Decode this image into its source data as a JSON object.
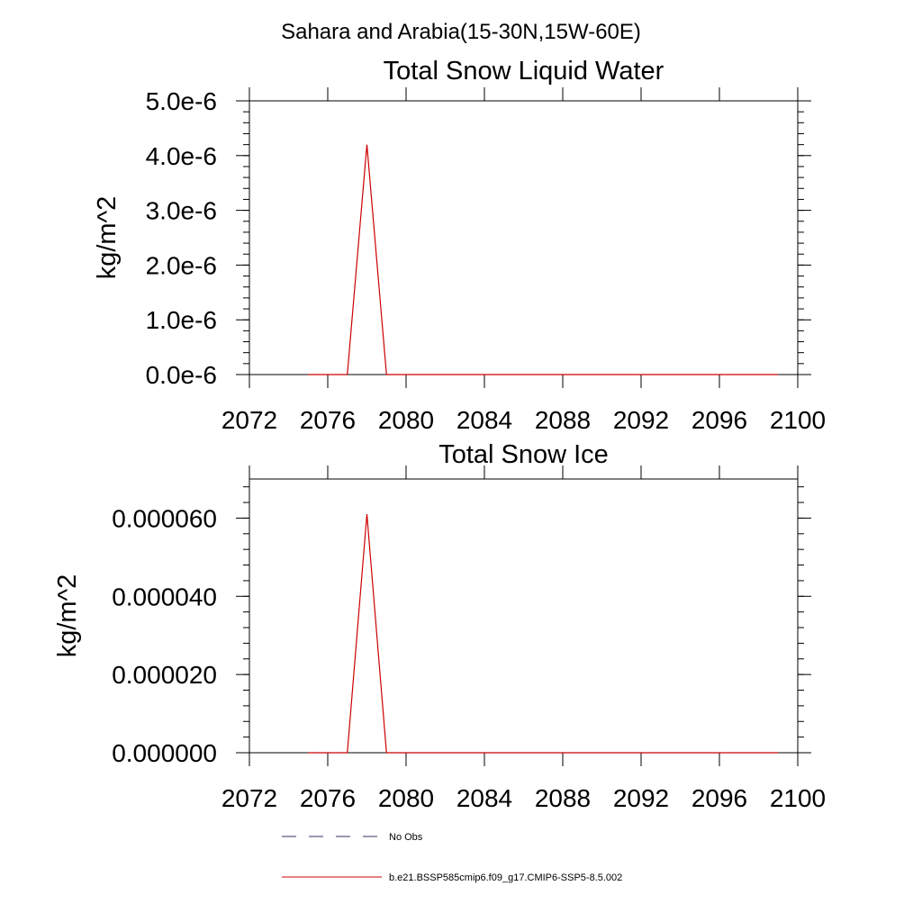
{
  "suptitle": "Sahara and Arabia(15-30N,15W-60E)",
  "chart_data": [
    {
      "type": "line",
      "title": "Total Snow Liquid Water",
      "ylabel": "kg/m^2",
      "xlabel": "",
      "xlim": [
        2072,
        2100
      ],
      "ylim": [
        0,
        5e-06
      ],
      "xticks": [
        2072,
        2076,
        2080,
        2084,
        2088,
        2092,
        2096,
        2100
      ],
      "xtick_labels": [
        "2072",
        "2076",
        "2080",
        "2084",
        "2088",
        "2092",
        "2096",
        "2100"
      ],
      "yticks": [
        0,
        1e-06,
        2e-06,
        3e-06,
        4e-06,
        5e-06
      ],
      "ytick_labels": [
        "0.0e-6",
        "1.0e-6",
        "2.0e-6",
        "3.0e-6",
        "4.0e-6",
        "5.0e-6"
      ],
      "grid": false,
      "x": [
        2075,
        2076,
        2077,
        2078,
        2079,
        2080,
        2081,
        2082,
        2083,
        2084,
        2085,
        2086,
        2087,
        2088,
        2089,
        2090,
        2091,
        2092,
        2093,
        2094,
        2095,
        2096,
        2097,
        2098,
        2099
      ],
      "series": [
        {
          "name": "b.e21.BSSP585cmip6.f09_g17.CMIP6-SSP5-8.5.002",
          "color": "#cc0000",
          "values": [
            0,
            0,
            0,
            4.2e-06,
            0,
            0,
            0,
            0,
            0,
            0,
            0,
            0,
            0,
            0,
            0,
            0,
            0,
            0,
            0,
            0,
            0,
            0,
            0,
            0,
            0
          ]
        }
      ]
    },
    {
      "type": "line",
      "title": "Total Snow Ice",
      "ylabel": "kg/m^2",
      "xlabel": "",
      "xlim": [
        2072,
        2100
      ],
      "ylim": [
        0,
        7e-05
      ],
      "xticks": [
        2072,
        2076,
        2080,
        2084,
        2088,
        2092,
        2096,
        2100
      ],
      "xtick_labels": [
        "2072",
        "2076",
        "2080",
        "2084",
        "2088",
        "2092",
        "2096",
        "2100"
      ],
      "yticks": [
        0,
        2e-05,
        4e-05,
        6e-05
      ],
      "ytick_labels": [
        "0.000000",
        "0.000020",
        "0.000040",
        "0.000060"
      ],
      "grid": false,
      "x": [
        2075,
        2076,
        2077,
        2078,
        2079,
        2080,
        2081,
        2082,
        2083,
        2084,
        2085,
        2086,
        2087,
        2088,
        2089,
        2090,
        2091,
        2092,
        2093,
        2094,
        2095,
        2096,
        2097,
        2098,
        2099
      ],
      "series": [
        {
          "name": "b.e21.BSSP585cmip6.f09_g17.CMIP6-SSP5-8.5.002",
          "color": "#cc0000",
          "values": [
            0,
            0,
            0,
            6.1e-05,
            0,
            0,
            0,
            0,
            0,
            0,
            0,
            0,
            0,
            0,
            0,
            0,
            0,
            0,
            0,
            0,
            0,
            0,
            0,
            0,
            0
          ]
        }
      ]
    }
  ],
  "legend": {
    "placement": "bottom",
    "items": [
      {
        "label": "No Obs",
        "color": "#333366",
        "style": "dashed"
      },
      {
        "label": "b.e21.BSSP585cmip6.f09_g17.CMIP6-SSP5-8.5.002",
        "color": "#cc0000",
        "style": "solid"
      }
    ]
  }
}
